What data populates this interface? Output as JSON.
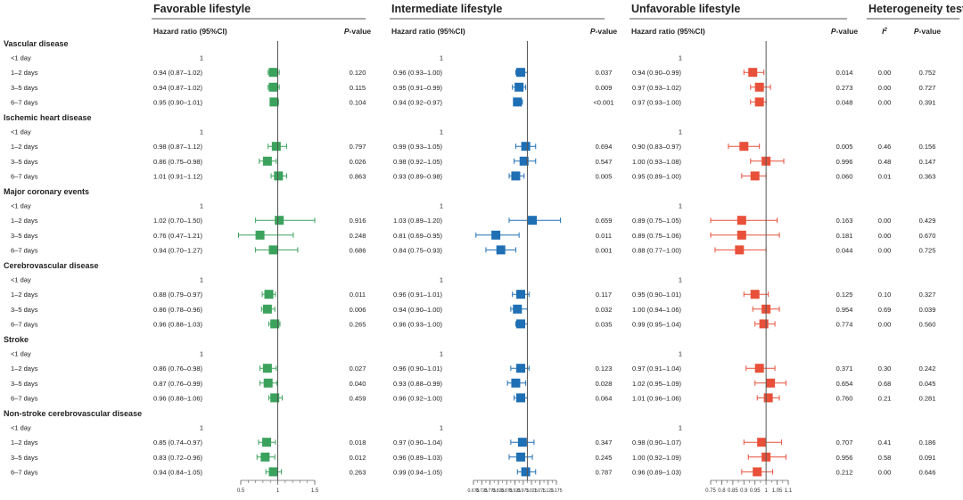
{
  "panels": [
    {
      "title": "Favorable lifestyle",
      "col_hr": "Hazard ratio (95%CI)",
      "col_p_prefix": "P",
      "col_p_suffix": "-value"
    },
    {
      "title": "Intermediate lifestyle",
      "col_hr": "Hazard ratio (95%CI)",
      "col_p_prefix": "P",
      "col_p_suffix": "-value"
    },
    {
      "title": "Unfavorable lifestyle",
      "col_hr": "Hazard ratio (95%CI)",
      "col_p_prefix": "P",
      "col_p_suffix": "-value"
    }
  ],
  "heterogeneity": {
    "title": "Heterogeneity test",
    "i2_label": "I",
    "i2_sup": "2",
    "p_prefix": "P",
    "p_suffix": "-value"
  },
  "colors": {
    "favorable": "#3aa25c",
    "intermediate": "#1f6fb5",
    "unfavorable": "#e8503a",
    "axis": "#666666",
    "ref": "#555555"
  },
  "chart_data": {
    "type": "forest",
    "reference_line": 1,
    "reference_label": "1",
    "axes": [
      {
        "panel": "favorable",
        "min": 0.5,
        "max": 1.5,
        "ticks": [
          0.5,
          1,
          1.5
        ],
        "tick_labels": [
          "0.5",
          "1",
          "1.5"
        ],
        "minor_step": 0.1
      },
      {
        "panel": "intermediate",
        "min": 0.675,
        "max": 1.175,
        "ticks": [
          0.675,
          0.725,
          0.775,
          0.825,
          0.875,
          0.925,
          0.975,
          1.025,
          1.075,
          1.125,
          1.175
        ],
        "tick_labels": [
          "0.675",
          "0.725",
          "0.775",
          "0.825",
          "0.875",
          "0.925",
          "0.975",
          "1.025",
          "1.075",
          "1.125",
          "1.175"
        ],
        "minor_step": 0.025
      },
      {
        "panel": "unfavorable",
        "min": 0.75,
        "max": 1.1,
        "ticks": [
          0.75,
          0.8,
          0.85,
          0.9,
          0.95,
          1,
          1.05,
          1.1
        ],
        "tick_labels": [
          "0.75",
          "0.8",
          "0.85",
          "0.9",
          "0.95",
          "1",
          "1.05",
          "1.1"
        ],
        "minor_step": 0.025
      }
    ],
    "groups": [
      {
        "name": "Vascular disease",
        "rows": [
          {
            "label": "<1 day",
            "ref": true
          },
          {
            "label": "1–2 days",
            "fav": {
              "hr": 0.94,
              "lo": 0.87,
              "hi": 1.02,
              "text": "0.94 (0.87–1.02)",
              "p": "0.120"
            },
            "int": {
              "hr": 0.96,
              "lo": 0.93,
              "hi": 1.0,
              "text": "0.96 (0.93–1.00)",
              "p": "0.037"
            },
            "unf": {
              "hr": 0.94,
              "lo": 0.9,
              "hi": 0.99,
              "text": "0.94 (0.90–0.99)",
              "p": "0.014"
            },
            "het": {
              "i2": "0.00",
              "p": "0.752"
            }
          },
          {
            "label": "3–5 days",
            "fav": {
              "hr": 0.94,
              "lo": 0.87,
              "hi": 1.02,
              "text": "0.94 (0.87–1.02)",
              "p": "0.115"
            },
            "int": {
              "hr": 0.95,
              "lo": 0.91,
              "hi": 0.99,
              "text": "0.95 (0.91–0.99)",
              "p": "0.009"
            },
            "unf": {
              "hr": 0.97,
              "lo": 0.93,
              "hi": 1.02,
              "text": "0.97 (0.93–1.02)",
              "p": "0.273"
            },
            "het": {
              "i2": "0.00",
              "p": "0.727"
            }
          },
          {
            "label": "6–7 days",
            "fav": {
              "hr": 0.95,
              "lo": 0.9,
              "hi": 1.01,
              "text": "0.95 (0.90–1.01)",
              "p": "0.104"
            },
            "int": {
              "hr": 0.94,
              "lo": 0.92,
              "hi": 0.97,
              "text": "0.94 (0.92–0.97)",
              "p": "<0.001"
            },
            "unf": {
              "hr": 0.97,
              "lo": 0.93,
              "hi": 1.0,
              "text": "0.97 (0.93–1.00)",
              "p": "0.048"
            },
            "het": {
              "i2": "0.00",
              "p": "0.391"
            }
          }
        ]
      },
      {
        "name": "Ischemic heart disease",
        "rows": [
          {
            "label": "<1 day",
            "ref": true
          },
          {
            "label": "1–2 days",
            "fav": {
              "hr": 0.98,
              "lo": 0.87,
              "hi": 1.12,
              "text": "0.98 (0.87–1.12)",
              "p": "0.797"
            },
            "int": {
              "hr": 0.99,
              "lo": 0.93,
              "hi": 1.05,
              "text": "0.99 (0.93–1.05)",
              "p": "0.694"
            },
            "unf": {
              "hr": 0.9,
              "lo": 0.83,
              "hi": 0.97,
              "text": "0.90 (0.83–0.97)",
              "p": "0.005"
            },
            "het": {
              "i2": "0.46",
              "p": "0.156"
            }
          },
          {
            "label": "3–5 days",
            "fav": {
              "hr": 0.86,
              "lo": 0.75,
              "hi": 0.98,
              "text": "0.86 (0.75–0.98)",
              "p": "0.026"
            },
            "int": {
              "hr": 0.98,
              "lo": 0.92,
              "hi": 1.05,
              "text": "0.98 (0.92–1.05)",
              "p": "0.547"
            },
            "unf": {
              "hr": 1.0,
              "lo": 0.93,
              "hi": 1.08,
              "text": "1.00 (0.93–1.08)",
              "p": "0.996"
            },
            "het": {
              "i2": "0.48",
              "p": "0.147"
            }
          },
          {
            "label": "6–7 days",
            "fav": {
              "hr": 1.01,
              "lo": 0.91,
              "hi": 1.12,
              "text": "1.01 (0.91–1.12)",
              "p": "0.863"
            },
            "int": {
              "hr": 0.93,
              "lo": 0.89,
              "hi": 0.98,
              "text": "0.93 (0.89–0.98)",
              "p": "0.005"
            },
            "unf": {
              "hr": 0.95,
              "lo": 0.89,
              "hi": 1.0,
              "text": "0.95 (0.89–1.00)",
              "p": "0.060"
            },
            "het": {
              "i2": "0.01",
              "p": "0.363"
            }
          }
        ]
      },
      {
        "name": "Major coronary events",
        "rows": [
          {
            "label": "<1 day",
            "ref": true
          },
          {
            "label": "1–2 days",
            "fav": {
              "hr": 1.02,
              "lo": 0.7,
              "hi": 1.5,
              "text": "1.02 (0.70–1.50)",
              "p": "0.916"
            },
            "int": {
              "hr": 1.03,
              "lo": 0.89,
              "hi": 1.2,
              "text": "1.03 (0.89–1.20)",
              "p": "0.659"
            },
            "unf": {
              "hr": 0.89,
              "lo": 0.75,
              "hi": 1.05,
              "text": "0.89 (0.75–1.05)",
              "p": "0.163"
            },
            "het": {
              "i2": "0.00",
              "p": "0.429"
            }
          },
          {
            "label": "3–5 days",
            "fav": {
              "hr": 0.76,
              "lo": 0.47,
              "hi": 1.21,
              "text": "0.76 (0.47–1.21)",
              "p": "0.248"
            },
            "int": {
              "hr": 0.81,
              "lo": 0.69,
              "hi": 0.95,
              "text": "0.81 (0.69–0.95)",
              "p": "0.011"
            },
            "unf": {
              "hr": 0.89,
              "lo": 0.75,
              "hi": 1.06,
              "text": "0.89 (0.75–1.06)",
              "p": "0.181"
            },
            "het": {
              "i2": "0.00",
              "p": "0.670"
            }
          },
          {
            "label": "6–7 days",
            "fav": {
              "hr": 0.94,
              "lo": 0.7,
              "hi": 1.27,
              "text": "0.94 (0.70–1.27)",
              "p": "0.686"
            },
            "int": {
              "hr": 0.84,
              "lo": 0.75,
              "hi": 0.93,
              "text": "0.84 (0.75–0.93)",
              "p": "0.001"
            },
            "unf": {
              "hr": 0.88,
              "lo": 0.77,
              "hi": 1.0,
              "text": "0.88 (0.77–1.00)",
              "p": "0.044"
            },
            "het": {
              "i2": "0.00",
              "p": "0.725"
            }
          }
        ]
      },
      {
        "name": "Cerebrovascular disease",
        "rows": [
          {
            "label": "<1 day",
            "ref": true
          },
          {
            "label": "1–2 days",
            "fav": {
              "hr": 0.88,
              "lo": 0.79,
              "hi": 0.97,
              "text": "0.88 (0.79–0.97)",
              "p": "0.011"
            },
            "int": {
              "hr": 0.96,
              "lo": 0.91,
              "hi": 1.01,
              "text": "0.96 (0.91–1.01)",
              "p": "0.117"
            },
            "unf": {
              "hr": 0.95,
              "lo": 0.9,
              "hi": 1.01,
              "text": "0.95 (0.90–1.01)",
              "p": "0.125"
            },
            "het": {
              "i2": "0.10",
              "p": "0.327"
            }
          },
          {
            "label": "3–5 days",
            "fav": {
              "hr": 0.86,
              "lo": 0.78,
              "hi": 0.96,
              "text": "0.86 (0.78–0.96)",
              "p": "0.006"
            },
            "int": {
              "hr": 0.94,
              "lo": 0.9,
              "hi": 1.0,
              "text": "0.94 (0.90–1.00)",
              "p": "0.032"
            },
            "unf": {
              "hr": 1.0,
              "lo": 0.94,
              "hi": 1.06,
              "text": "1.00 (0.94–1.06)",
              "p": "0.954"
            },
            "het": {
              "i2": "0.69",
              "p": "0.039"
            }
          },
          {
            "label": "6–7 days",
            "fav": {
              "hr": 0.96,
              "lo": 0.88,
              "hi": 1.03,
              "text": "0.96 (0.88–1.03)",
              "p": "0.265"
            },
            "int": {
              "hr": 0.96,
              "lo": 0.93,
              "hi": 1.0,
              "text": "0.96 (0.93–1.00)",
              "p": "0.035"
            },
            "unf": {
              "hr": 0.99,
              "lo": 0.95,
              "hi": 1.04,
              "text": "0.99 (0.95–1.04)",
              "p": "0.774"
            },
            "het": {
              "i2": "0.00",
              "p": "0.560"
            }
          }
        ]
      },
      {
        "name": "Stroke",
        "rows": [
          {
            "label": "<1 day",
            "ref": true
          },
          {
            "label": "1–2 days",
            "fav": {
              "hr": 0.86,
              "lo": 0.76,
              "hi": 0.98,
              "text": "0.86 (0.76–0.98)",
              "p": "0.027"
            },
            "int": {
              "hr": 0.96,
              "lo": 0.9,
              "hi": 1.01,
              "text": "0.96 (0.90–1.01)",
              "p": "0.123"
            },
            "unf": {
              "hr": 0.97,
              "lo": 0.91,
              "hi": 1.04,
              "text": "0.97 (0.91–1.04)",
              "p": "0.371"
            },
            "het": {
              "i2": "0.30",
              "p": "0.242"
            }
          },
          {
            "label": "3–5 days",
            "fav": {
              "hr": 0.87,
              "lo": 0.76,
              "hi": 0.99,
              "text": "0.87 (0.76–0.99)",
              "p": "0.040"
            },
            "int": {
              "hr": 0.93,
              "lo": 0.88,
              "hi": 0.99,
              "text": "0.93 (0.88–0.99)",
              "p": "0.028"
            },
            "unf": {
              "hr": 1.02,
              "lo": 0.95,
              "hi": 1.09,
              "text": "1.02 (0.95–1.09)",
              "p": "0.654"
            },
            "het": {
              "i2": "0.68",
              "p": "0.045"
            }
          },
          {
            "label": "6–7 days",
            "fav": {
              "hr": 0.96,
              "lo": 0.88,
              "hi": 1.06,
              "text": "0.96 (0.88–1.06)",
              "p": "0.459"
            },
            "int": {
              "hr": 0.96,
              "lo": 0.92,
              "hi": 1.0,
              "text": "0.96 (0.92–1.00)",
              "p": "0.064"
            },
            "unf": {
              "hr": 1.01,
              "lo": 0.96,
              "hi": 1.06,
              "text": "1.01 (0.96–1.06)",
              "p": "0.760"
            },
            "het": {
              "i2": "0.21",
              "p": "0.281"
            }
          }
        ]
      },
      {
        "name": "Non-stroke cerebrovascular disease",
        "rows": [
          {
            "label": "<1 day",
            "ref": true
          },
          {
            "label": "1–2 days",
            "fav": {
              "hr": 0.85,
              "lo": 0.74,
              "hi": 0.97,
              "text": "0.85 (0.74–0.97)",
              "p": "0.018"
            },
            "int": {
              "hr": 0.97,
              "lo": 0.9,
              "hi": 1.04,
              "text": "0.97 (0.90–1.04)",
              "p": "0.347"
            },
            "unf": {
              "hr": 0.98,
              "lo": 0.9,
              "hi": 1.07,
              "text": "0.98 (0.90–1.07)",
              "p": "0.707"
            },
            "het": {
              "i2": "0.41",
              "p": "0.186"
            }
          },
          {
            "label": "3–5 days",
            "fav": {
              "hr": 0.83,
              "lo": 0.72,
              "hi": 0.96,
              "text": "0.83 (0.72–0.96)",
              "p": "0.012"
            },
            "int": {
              "hr": 0.96,
              "lo": 0.89,
              "hi": 1.03,
              "text": "0.96 (0.89–1.03)",
              "p": "0.245"
            },
            "unf": {
              "hr": 1.0,
              "lo": 0.92,
              "hi": 1.09,
              "text": "1.00 (0.92–1.09)",
              "p": "0.956"
            },
            "het": {
              "i2": "0.58",
              "p": "0.091"
            }
          },
          {
            "label": "6–7 days",
            "fav": {
              "hr": 0.94,
              "lo": 0.84,
              "hi": 1.05,
              "text": "0.94 (0.84–1.05)",
              "p": "0.263"
            },
            "int": {
              "hr": 0.99,
              "lo": 0.94,
              "hi": 1.05,
              "text": "0.99 (0.94–1.05)",
              "p": "0.787"
            },
            "unf": {
              "hr": 0.96,
              "lo": 0.89,
              "hi": 1.03,
              "text": "0.96 (0.89–1.03)",
              "p": "0.212"
            },
            "het": {
              "i2": "0.00",
              "p": "0.646"
            }
          }
        ]
      }
    ]
  }
}
